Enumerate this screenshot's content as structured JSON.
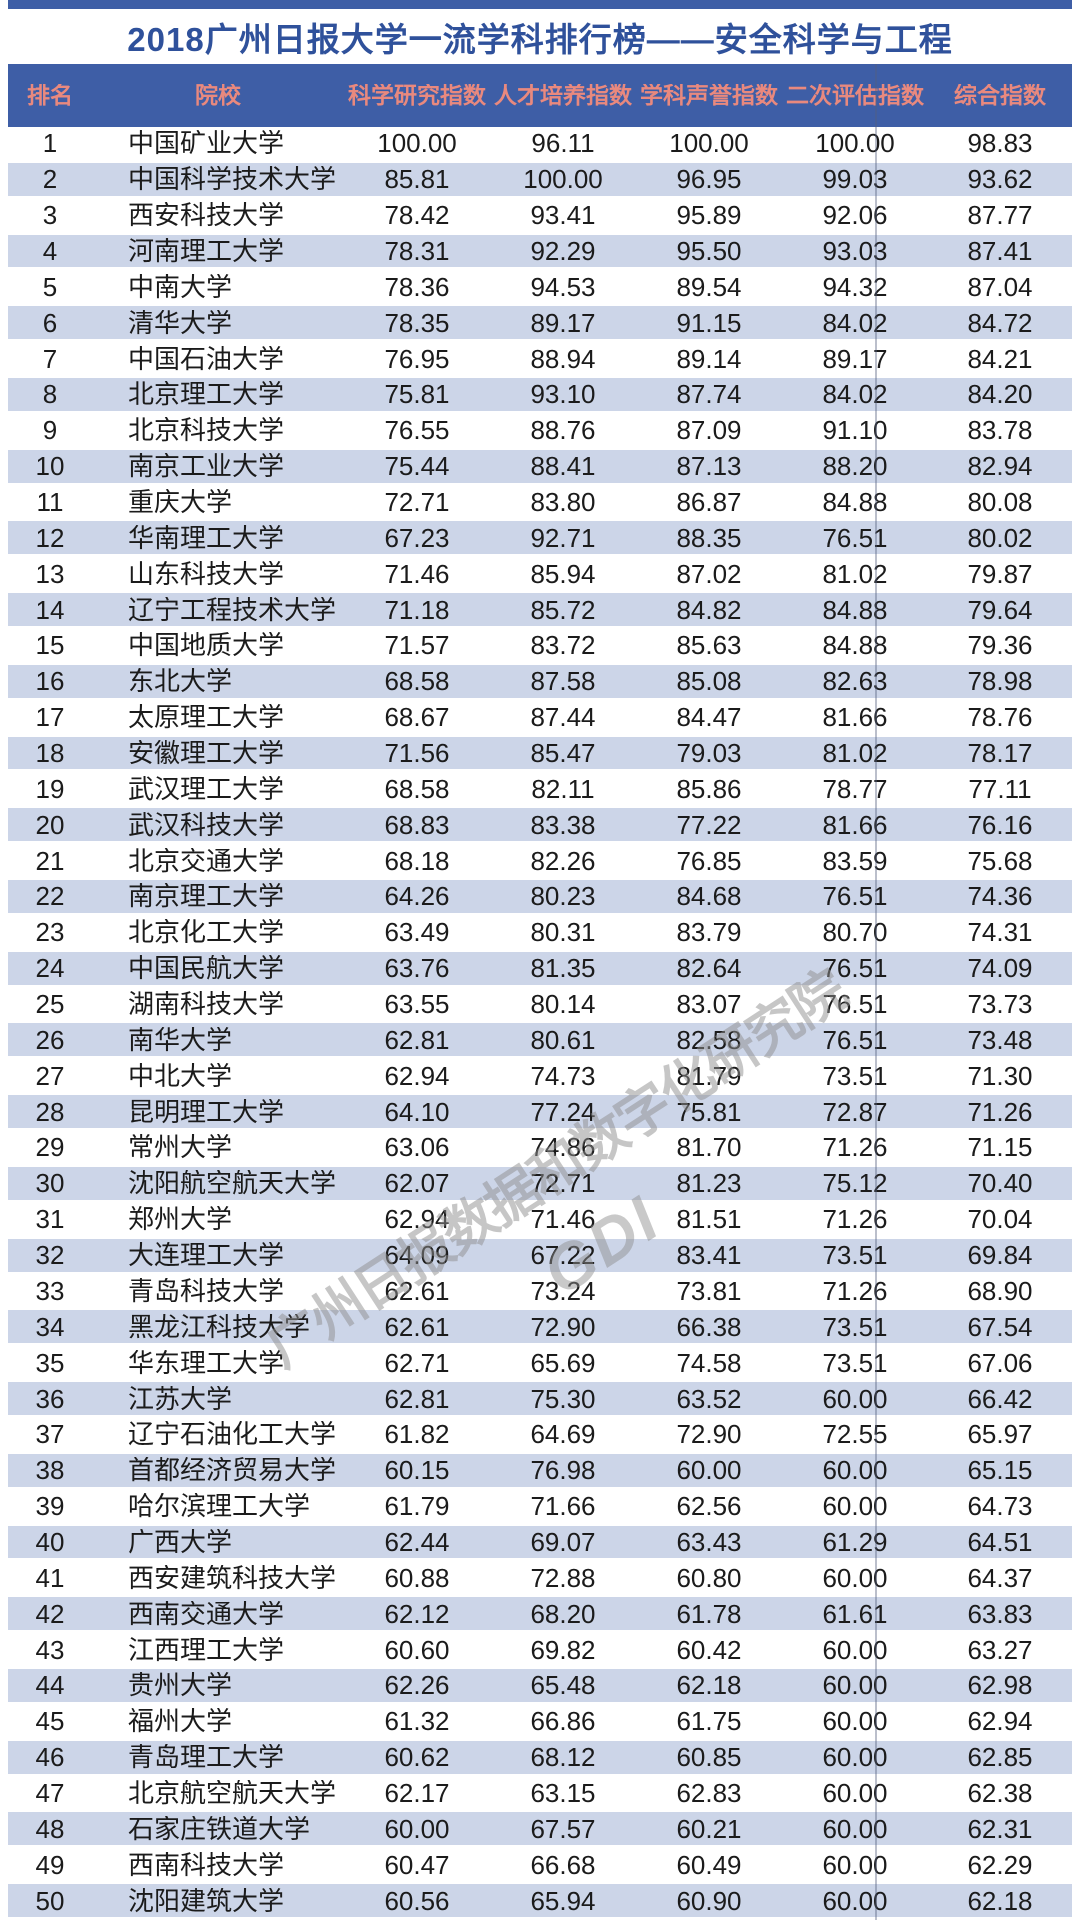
{
  "page": {
    "title": "2018广州日报大学一流学科排行榜——安全科学与工程"
  },
  "chart_data": {
    "type": "table",
    "title": "2018广州日报大学一流学科排行榜——安全科学与工程",
    "columns": [
      "排名",
      "院校",
      "科学研究指数",
      "人才培养指数",
      "学科声誉指数",
      "二次评估指数",
      "综合指数"
    ],
    "rows": [
      [
        "1",
        "中国矿业大学",
        "100.00",
        "96.11",
        "100.00",
        "100.00",
        "98.83"
      ],
      [
        "2",
        "中国科学技术大学",
        "85.81",
        "100.00",
        "96.95",
        "99.03",
        "93.62"
      ],
      [
        "3",
        "西安科技大学",
        "78.42",
        "93.41",
        "95.89",
        "92.06",
        "87.77"
      ],
      [
        "4",
        "河南理工大学",
        "78.31",
        "92.29",
        "95.50",
        "93.03",
        "87.41"
      ],
      [
        "5",
        "中南大学",
        "78.36",
        "94.53",
        "89.54",
        "94.32",
        "87.04"
      ],
      [
        "6",
        "清华大学",
        "78.35",
        "89.17",
        "91.15",
        "84.02",
        "84.72"
      ],
      [
        "7",
        "中国石油大学",
        "76.95",
        "88.94",
        "89.14",
        "89.17",
        "84.21"
      ],
      [
        "8",
        "北京理工大学",
        "75.81",
        "93.10",
        "87.74",
        "84.02",
        "84.20"
      ],
      [
        "9",
        "北京科技大学",
        "76.55",
        "88.76",
        "87.09",
        "91.10",
        "83.78"
      ],
      [
        "10",
        "南京工业大学",
        "75.44",
        "88.41",
        "87.13",
        "88.20",
        "82.94"
      ],
      [
        "11",
        "重庆大学",
        "72.71",
        "83.80",
        "86.87",
        "84.88",
        "80.08"
      ],
      [
        "12",
        "华南理工大学",
        "67.23",
        "92.71",
        "88.35",
        "76.51",
        "80.02"
      ],
      [
        "13",
        "山东科技大学",
        "71.46",
        "85.94",
        "87.02",
        "81.02",
        "79.87"
      ],
      [
        "14",
        "辽宁工程技术大学",
        "71.18",
        "85.72",
        "84.82",
        "84.88",
        "79.64"
      ],
      [
        "15",
        "中国地质大学",
        "71.57",
        "83.72",
        "85.63",
        "84.88",
        "79.36"
      ],
      [
        "16",
        "东北大学",
        "68.58",
        "87.58",
        "85.08",
        "82.63",
        "78.98"
      ],
      [
        "17",
        "太原理工大学",
        "68.67",
        "87.44",
        "84.47",
        "81.66",
        "78.76"
      ],
      [
        "18",
        "安徽理工大学",
        "71.56",
        "85.47",
        "79.03",
        "81.02",
        "78.17"
      ],
      [
        "19",
        "武汉理工大学",
        "68.58",
        "82.11",
        "85.86",
        "78.77",
        "77.11"
      ],
      [
        "20",
        "武汉科技大学",
        "68.83",
        "83.38",
        "77.22",
        "81.66",
        "76.16"
      ],
      [
        "21",
        "北京交通大学",
        "68.18",
        "82.26",
        "76.85",
        "83.59",
        "75.68"
      ],
      [
        "22",
        "南京理工大学",
        "64.26",
        "80.23",
        "84.68",
        "76.51",
        "74.36"
      ],
      [
        "23",
        "北京化工大学",
        "63.49",
        "80.31",
        "83.79",
        "80.70",
        "74.31"
      ],
      [
        "24",
        "中国民航大学",
        "63.76",
        "81.35",
        "82.64",
        "76.51",
        "74.09"
      ],
      [
        "25",
        "湖南科技大学",
        "63.55",
        "80.14",
        "83.07",
        "76.51",
        "73.73"
      ],
      [
        "26",
        "南华大学",
        "62.81",
        "80.61",
        "82.58",
        "76.51",
        "73.48"
      ],
      [
        "27",
        "中北大学",
        "62.94",
        "74.73",
        "81.79",
        "73.51",
        "71.30"
      ],
      [
        "28",
        "昆明理工大学",
        "64.10",
        "77.24",
        "75.81",
        "72.87",
        "71.26"
      ],
      [
        "29",
        "常州大学",
        "63.06",
        "74.86",
        "81.70",
        "71.26",
        "71.15"
      ],
      [
        "30",
        "沈阳航空航天大学",
        "62.07",
        "72.71",
        "81.23",
        "75.12",
        "70.40"
      ],
      [
        "31",
        "郑州大学",
        "62.94",
        "71.46",
        "81.51",
        "71.26",
        "70.04"
      ],
      [
        "32",
        "大连理工大学",
        "64.09",
        "67.22",
        "83.41",
        "73.51",
        "69.84"
      ],
      [
        "33",
        "青岛科技大学",
        "62.61",
        "73.24",
        "73.81",
        "71.26",
        "68.90"
      ],
      [
        "34",
        "黑龙江科技大学",
        "62.61",
        "72.90",
        "66.38",
        "73.51",
        "67.54"
      ],
      [
        "35",
        "华东理工大学",
        "62.71",
        "65.69",
        "74.58",
        "73.51",
        "67.06"
      ],
      [
        "36",
        "江苏大学",
        "62.81",
        "75.30",
        "63.52",
        "60.00",
        "66.42"
      ],
      [
        "37",
        "辽宁石油化工大学",
        "61.82",
        "64.69",
        "72.90",
        "72.55",
        "65.97"
      ],
      [
        "38",
        "首都经济贸易大学",
        "60.15",
        "76.98",
        "60.00",
        "60.00",
        "65.15"
      ],
      [
        "39",
        "哈尔滨理工大学",
        "61.79",
        "71.66",
        "62.56",
        "60.00",
        "64.73"
      ],
      [
        "40",
        "广西大学",
        "62.44",
        "69.07",
        "63.43",
        "61.29",
        "64.51"
      ],
      [
        "41",
        "西安建筑科技大学",
        "60.88",
        "72.88",
        "60.80",
        "60.00",
        "64.37"
      ],
      [
        "42",
        "西南交通大学",
        "62.12",
        "68.20",
        "61.78",
        "61.61",
        "63.83"
      ],
      [
        "43",
        "江西理工大学",
        "60.60",
        "69.82",
        "60.42",
        "60.00",
        "63.27"
      ],
      [
        "44",
        "贵州大学",
        "62.26",
        "65.48",
        "62.18",
        "60.00",
        "62.98"
      ],
      [
        "45",
        "福州大学",
        "61.32",
        "66.86",
        "61.75",
        "60.00",
        "62.94"
      ],
      [
        "46",
        "青岛理工大学",
        "60.62",
        "68.12",
        "60.85",
        "60.00",
        "62.85"
      ],
      [
        "47",
        "北京航空航天大学",
        "62.17",
        "63.15",
        "62.83",
        "60.00",
        "62.38"
      ],
      [
        "48",
        "石家庄铁道大学",
        "60.00",
        "67.57",
        "60.21",
        "60.00",
        "62.31"
      ],
      [
        "49",
        "西南科技大学",
        "60.47",
        "66.68",
        "60.49",
        "60.00",
        "62.29"
      ],
      [
        "50",
        "沈阳建筑大学",
        "60.56",
        "65.94",
        "60.90",
        "60.00",
        "62.18"
      ]
    ],
    "layout": {
      "grid": false,
      "row_banding": "even rows light blue, odd rows white",
      "header_position": "top"
    }
  },
  "watermark": {
    "line1": "广州日报数据和数字化研究院",
    "line2": "GDI"
  },
  "colors": {
    "top_strip": "#3E5EA6",
    "header_bg": "#3E5EA6",
    "header_text": "#E9897E",
    "title_text": "#2F519B",
    "row_alt_bg": "#CCD5E8",
    "body_text": "#1b1b1b",
    "watermark": "#8f8f8f"
  }
}
